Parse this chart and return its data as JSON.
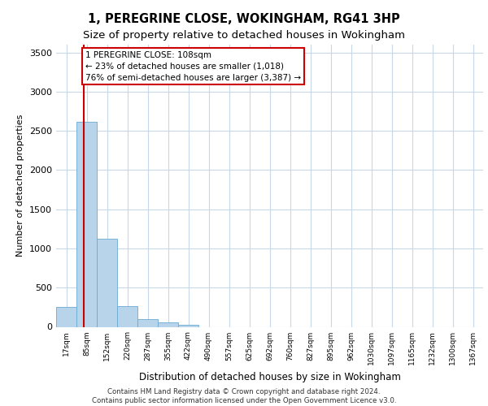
{
  "title_line1": "1, PEREGRINE CLOSE, WOKINGHAM, RG41 3HP",
  "title_line2": "Size of property relative to detached houses in Wokingham",
  "xlabel": "Distribution of detached houses by size in Wokingham",
  "ylabel": "Number of detached properties",
  "footer_line1": "Contains HM Land Registry data © Crown copyright and database right 2024.",
  "footer_line2": "Contains public sector information licensed under the Open Government Licence v3.0.",
  "annotation_line1": "1 PEREGRINE CLOSE: 108sqm",
  "annotation_line2": "← 23% of detached houses are smaller (1,018)",
  "annotation_line3": "76% of semi-detached houses are larger (3,387) →",
  "property_size": 108,
  "bar_color": "#b8d4ea",
  "bar_edge_color": "#6aaad4",
  "vline_color": "#cc0000",
  "annotation_box_edge": "#cc0000",
  "background_color": "#ffffff",
  "grid_color": "#c8d8e8",
  "categories": [
    "17sqm",
    "85sqm",
    "152sqm",
    "220sqm",
    "287sqm",
    "355sqm",
    "422sqm",
    "490sqm",
    "557sqm",
    "625sqm",
    "692sqm",
    "760sqm",
    "827sqm",
    "895sqm",
    "962sqm",
    "1030sqm",
    "1097sqm",
    "1165sqm",
    "1232sqm",
    "1300sqm",
    "1367sqm"
  ],
  "bin_edges": [
    17,
    85,
    152,
    220,
    287,
    355,
    422,
    490,
    557,
    625,
    692,
    760,
    827,
    895,
    962,
    1030,
    1097,
    1165,
    1232,
    1300,
    1367
  ],
  "values": [
    250,
    2620,
    1120,
    265,
    100,
    55,
    30,
    0,
    0,
    0,
    0,
    0,
    0,
    0,
    0,
    0,
    0,
    0,
    0,
    0,
    0
  ],
  "ylim": [
    0,
    3600
  ],
  "yticks": [
    0,
    500,
    1000,
    1500,
    2000,
    2500,
    3000,
    3500
  ]
}
